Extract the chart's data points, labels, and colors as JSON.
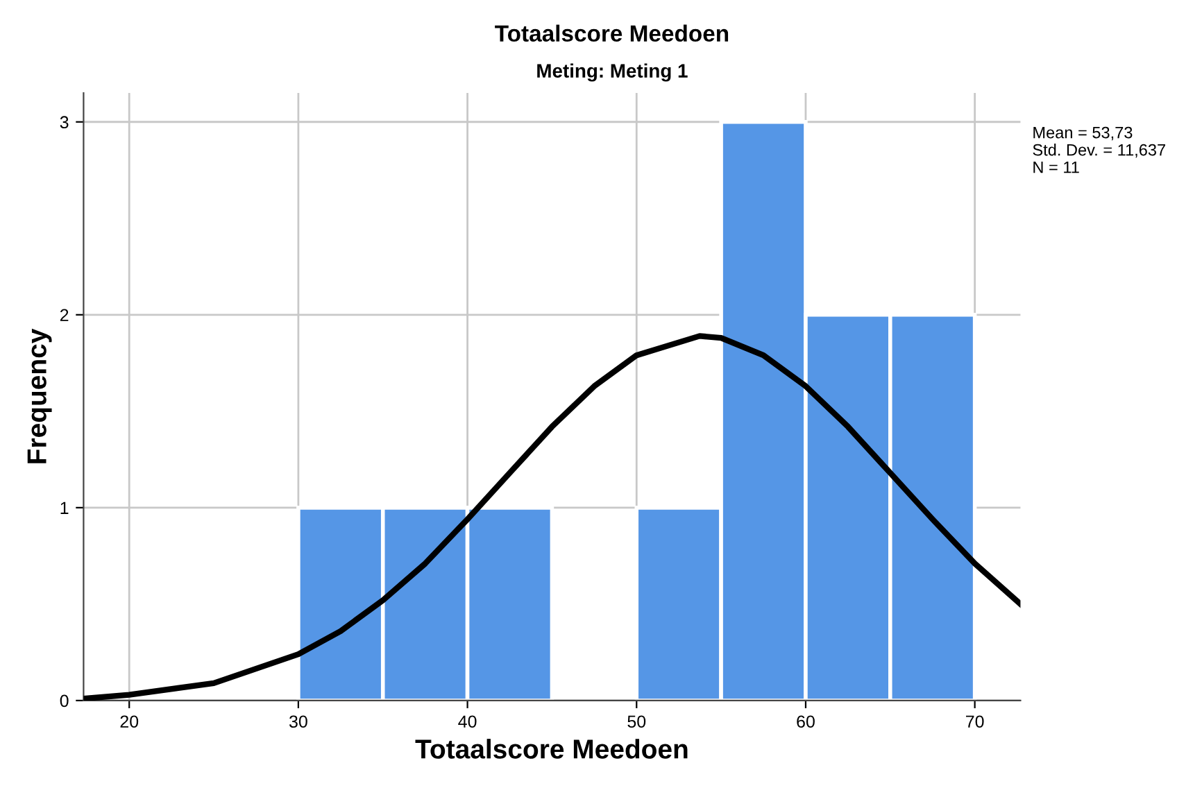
{
  "chart_data": {
    "type": "histogram",
    "title": "Totaalscore Meedoen",
    "subtitle": "Meting: Meting 1",
    "xlabel": "Totaalscore Meedoen",
    "ylabel": "Frequency",
    "bins": [
      30,
      35,
      40,
      45,
      50,
      55,
      60,
      65,
      70
    ],
    "values": [
      1,
      1,
      1,
      0,
      1,
      3,
      2,
      2
    ],
    "color": "#5596e6",
    "series": [
      {
        "type": "line",
        "color": "#000000",
        "x": [
          17.3,
          20,
          25,
          30,
          32.5,
          35,
          37.5,
          40,
          42.5,
          45,
          47.5,
          50,
          53.73,
          55,
          57.5,
          60,
          62.5,
          65,
          67.5,
          70,
          72.7
        ],
        "values": [
          0.01,
          0.03,
          0.09,
          0.24,
          0.36,
          0.52,
          0.71,
          0.94,
          1.18,
          1.42,
          1.63,
          1.79,
          1.89,
          1.88,
          1.79,
          1.63,
          1.42,
          1.18,
          0.94,
          0.71,
          0.5
        ]
      }
    ],
    "xlim": [
      17.3,
      72.7
    ],
    "xticks": [
      20,
      30,
      40,
      50,
      60,
      70
    ],
    "ylim": [
      0,
      3.15
    ],
    "yticks": [
      0,
      1,
      2,
      3
    ],
    "grid": true,
    "annotations": [
      "Mean = 53,73",
      "Std. Dev. = 11,637",
      "N = 11"
    ]
  }
}
